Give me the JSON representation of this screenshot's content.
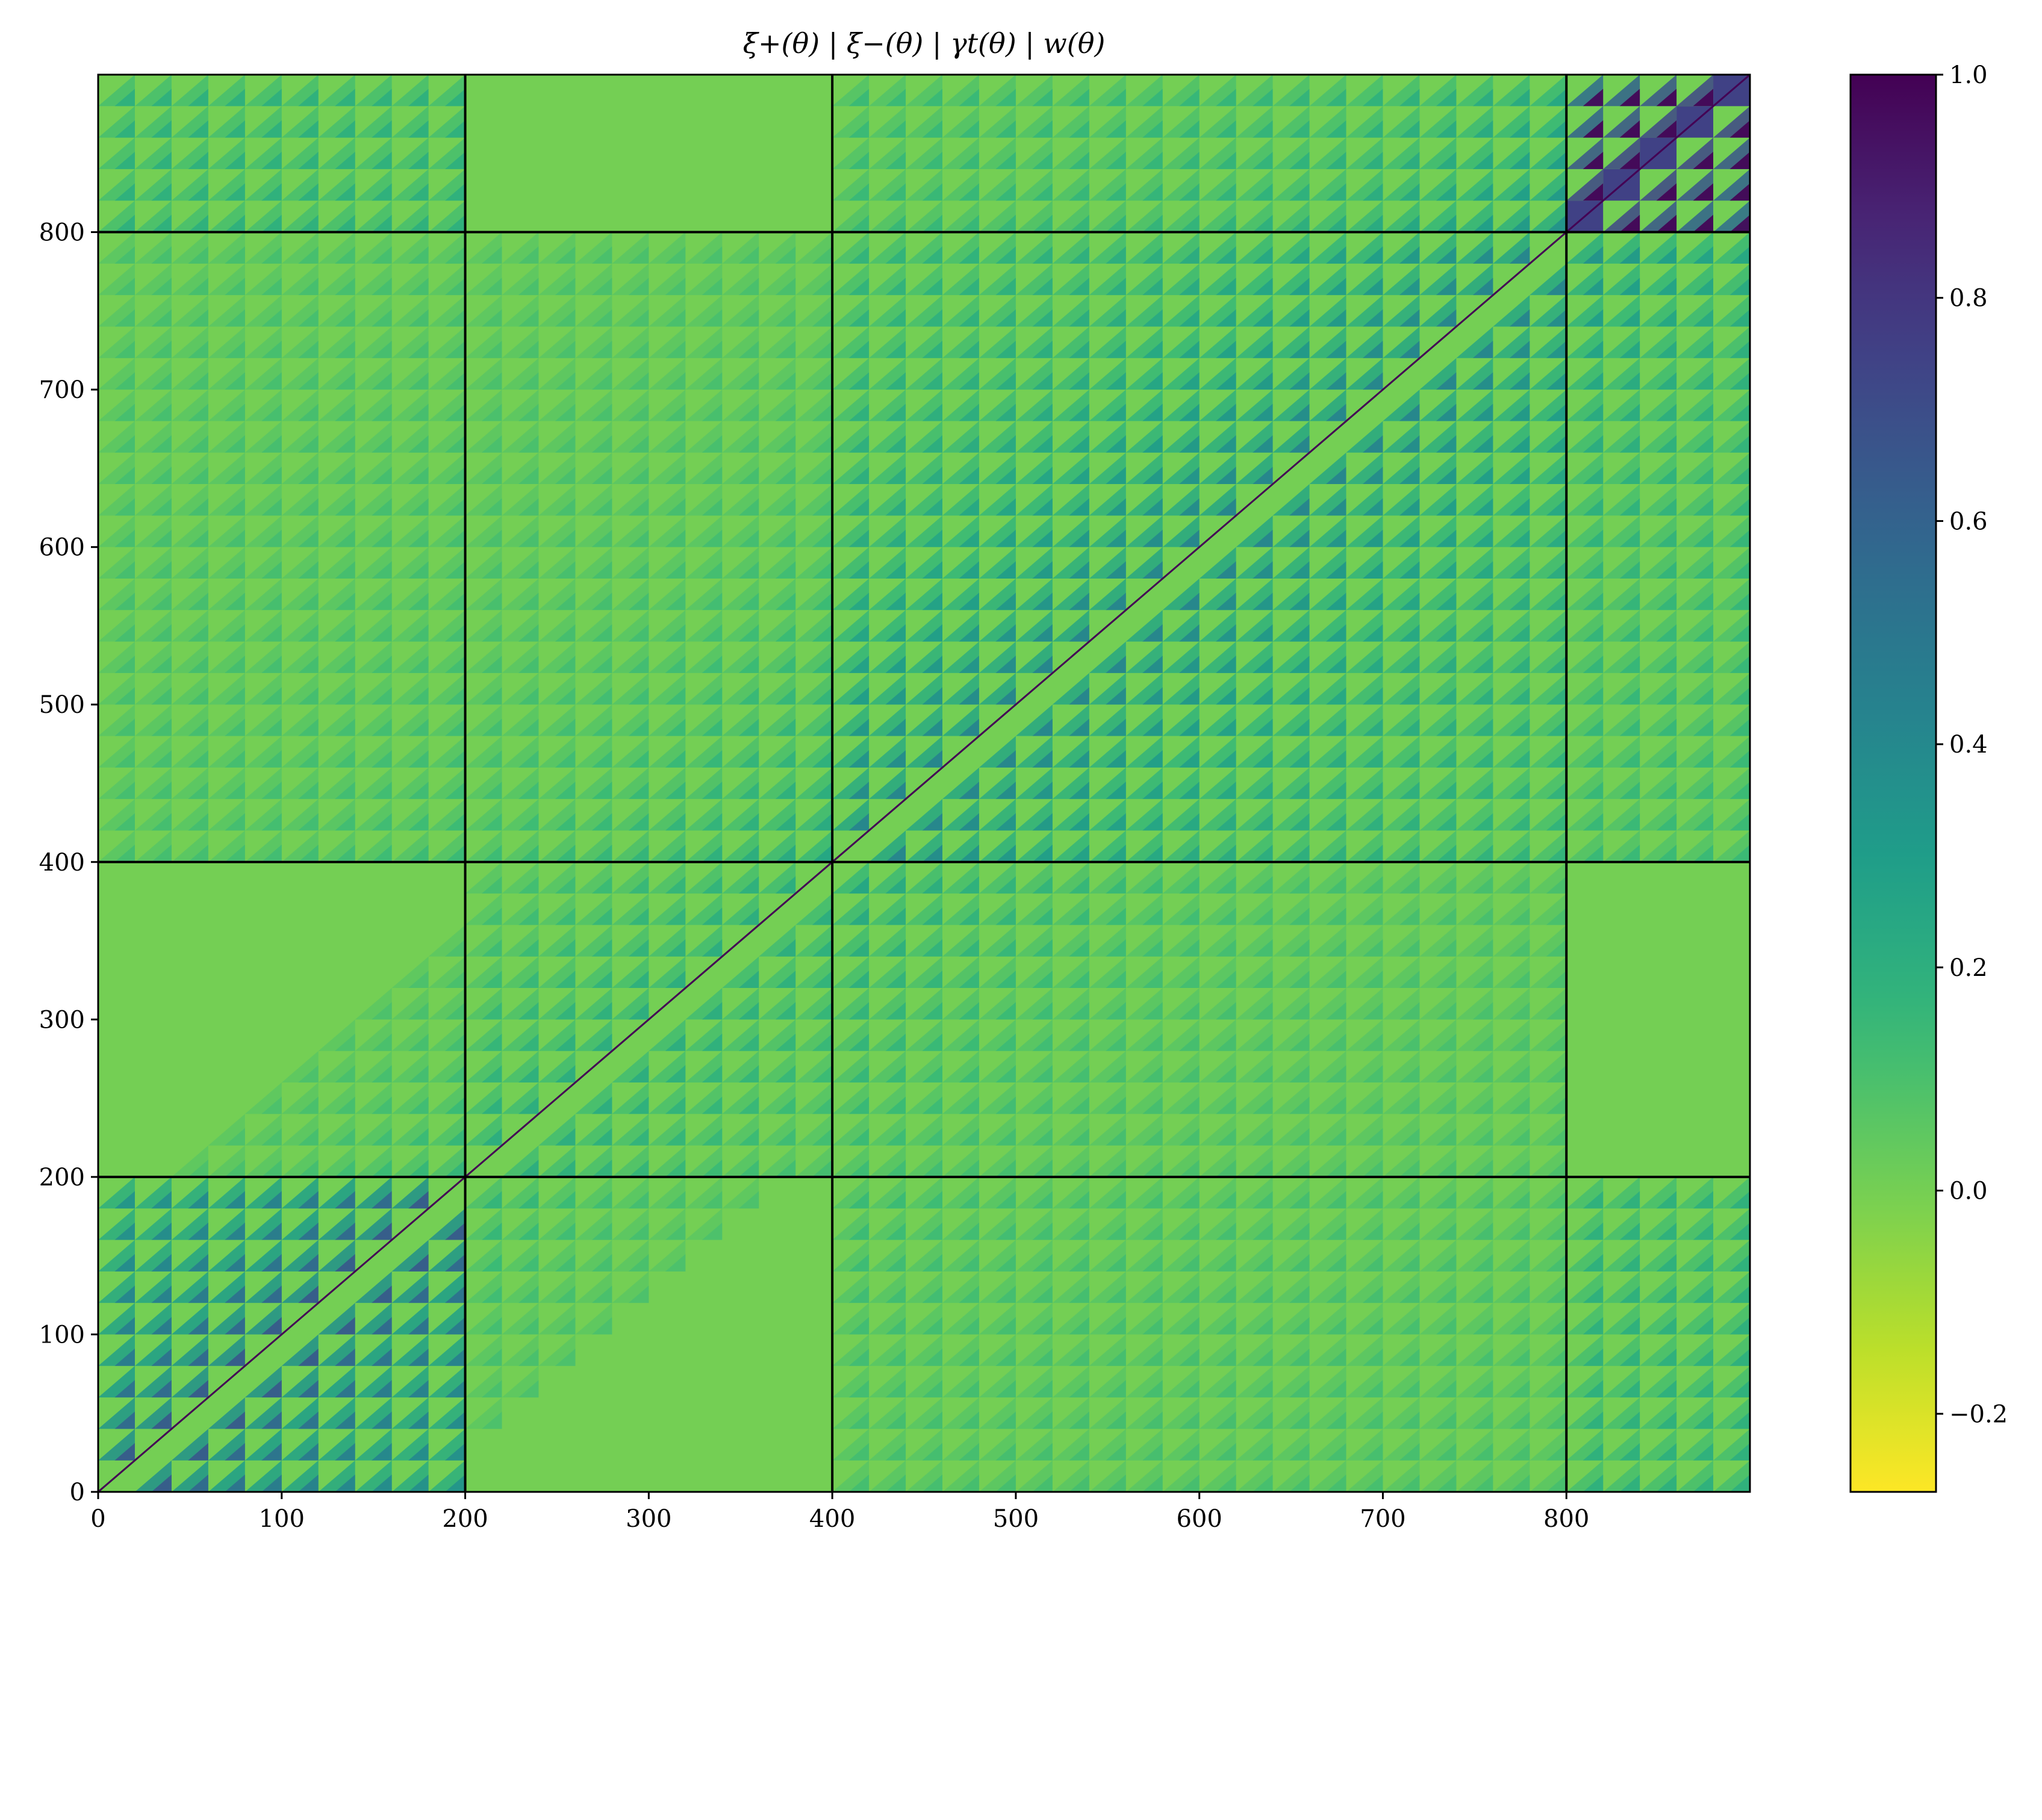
{
  "chart_data": {
    "type": "heatmap",
    "title": "ξ+(θ) | ξ−(θ) | γt(θ) | w(θ)",
    "xlabel": "",
    "ylabel": "",
    "xlim": [
      0,
      900
    ],
    "ylim": [
      0,
      900
    ],
    "x_ticks": [
      "0",
      "100",
      "200",
      "300",
      "400",
      "500",
      "600",
      "700",
      "800"
    ],
    "y_ticks": [
      "0",
      "100",
      "200",
      "300",
      "400",
      "500",
      "600",
      "700",
      "800"
    ],
    "x_tick_values": [
      0,
      100,
      200,
      300,
      400,
      500,
      600,
      700,
      800
    ],
    "y_tick_values": [
      0,
      100,
      200,
      300,
      400,
      500,
      600,
      700,
      800
    ],
    "block_boundaries": [
      200,
      400,
      800
    ],
    "blocks": [
      {
        "name": "ξ+(θ)",
        "range": [
          0,
          200
        ]
      },
      {
        "name": "ξ−(θ)",
        "range": [
          200,
          400
        ]
      },
      {
        "name": "γt(θ)",
        "range": [
          400,
          800
        ]
      },
      {
        "name": "w(θ)",
        "range": [
          800,
          900
        ]
      }
    ],
    "sub_block_size": 20,
    "diagonal_value": 1.0,
    "background_value": 0.0,
    "colorbar": {
      "colormap": "viridis_r",
      "vmin": -0.27,
      "vmax": 1.0,
      "ticks": [
        "−0.2",
        "0.0",
        "0.2",
        "0.4",
        "0.6",
        "0.8",
        "1.0"
      ],
      "tick_values": [
        -0.2,
        0.0,
        0.2,
        0.4,
        0.6,
        0.8,
        1.0
      ]
    },
    "grid": false
  }
}
